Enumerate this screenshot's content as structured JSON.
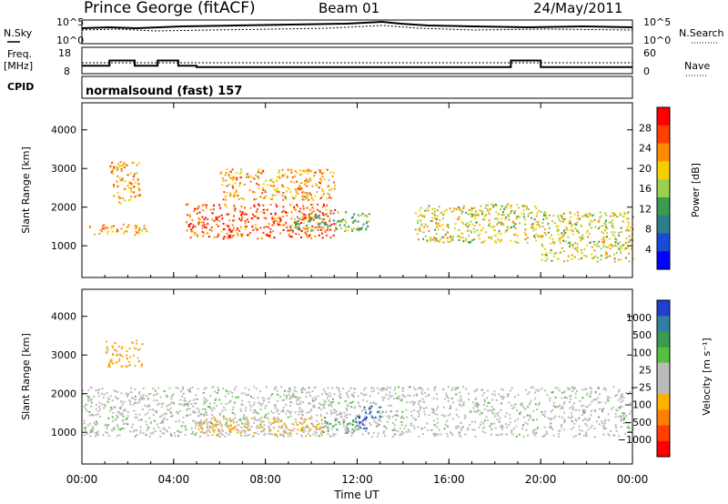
{
  "header": {
    "station": "Prince George (fitACF)",
    "beam": "Beam 01",
    "date": "24/May/2011"
  },
  "noise_panel": {
    "left_label": "N.Sky",
    "right_label": "N.Search",
    "left_ticks": [
      "10^5",
      "10^0"
    ],
    "right_ticks": [
      "10^5",
      "10^0"
    ]
  },
  "freq_panel": {
    "left_label": "Freq.",
    "left_unit": "[MHz]",
    "right_label": "Nave",
    "left_ticks": [
      "18",
      "8"
    ],
    "right_ticks": [
      "60",
      "0"
    ]
  },
  "cpid_panel": {
    "label": "CPID",
    "mode": "normalsound (fast) 157"
  },
  "power_panel": {
    "ylabel": "Slant Range [km]",
    "yticks": [
      "4000",
      "3000",
      "2000",
      "1000"
    ],
    "colorbar_label": "Power [dB]",
    "colorbar_ticks": [
      "28",
      "24",
      "20",
      "16",
      "12",
      "8",
      "4"
    ],
    "colors": [
      "#0000ff",
      "#1a4bd6",
      "#2e7d8c",
      "#3a9a50",
      "#9ad14a",
      "#f5d000",
      "#ff8c00",
      "#ff4000",
      "#ff0000"
    ]
  },
  "velocity_panel": {
    "ylabel": "Slant Range [km]",
    "yticks": [
      "4000",
      "3000",
      "2000",
      "1000"
    ],
    "colorbar_label": "Velocity [m s⁻¹]",
    "colorbar_ticks": [
      "1000",
      "500",
      "100",
      "25",
      "−25",
      "−100",
      "−500",
      "−1000"
    ],
    "colors": [
      "#1f3fd0",
      "#2f7fa0",
      "#3a9a50",
      "#55c040",
      "#bbbbbb",
      "#bbbbbb",
      "#ffb000",
      "#ff8000",
      "#ff4000",
      "#ff0000"
    ]
  },
  "xaxis": {
    "label": "Time UT",
    "ticks": [
      "00:00",
      "04:00",
      "08:00",
      "12:00",
      "16:00",
      "20:00",
      "00:00"
    ]
  },
  "chart_data": {
    "type": "heatmap",
    "title": "Prince George (fitACF) Beam 01 24/May/2011",
    "xlabel": "Time UT",
    "ylabel": "Slant Range [km]",
    "xlim_hours": [
      0,
      24
    ],
    "ylim_km": [
      180,
      4700
    ],
    "frequency_mhz": [
      {
        "start": 0.0,
        "end": 1.2,
        "value": 11
      },
      {
        "start": 1.2,
        "end": 2.3,
        "value": 13
      },
      {
        "start": 2.3,
        "end": 3.3,
        "value": 11
      },
      {
        "start": 3.3,
        "end": 4.2,
        "value": 13
      },
      {
        "start": 4.2,
        "end": 5.0,
        "value": 11
      },
      {
        "start": 5.0,
        "end": 18.7,
        "value": 10.5
      },
      {
        "start": 18.7,
        "end": 20.0,
        "value": 13
      },
      {
        "start": 20.0,
        "end": 24.0,
        "value": 10.5
      }
    ],
    "nave": 30,
    "power_bands": [
      {
        "t_start": 0.3,
        "t_end": 2.8,
        "range_start": 1300,
        "range_end": 1600,
        "power_db": 20
      },
      {
        "t_start": 1.2,
        "t_end": 2.5,
        "range_start": 2100,
        "range_end": 3200,
        "power_db": 20
      },
      {
        "t_start": 4.5,
        "t_end": 11.0,
        "range_start": 1200,
        "range_end": 2100,
        "power_db": 24
      },
      {
        "t_start": 6.0,
        "t_end": 11.0,
        "range_start": 2200,
        "range_end": 3000,
        "power_db": 20
      },
      {
        "t_start": 9.0,
        "t_end": 12.5,
        "range_start": 1400,
        "range_end": 1900,
        "power_db": 12
      },
      {
        "t_start": 14.5,
        "t_end": 20.0,
        "range_start": 1100,
        "range_end": 2100,
        "power_db": 16
      },
      {
        "t_start": 20.0,
        "t_end": 24.0,
        "range_start": 600,
        "range_end": 1900,
        "power_db": 16
      }
    ],
    "velocity_features": [
      {
        "t_start": 1.0,
        "t_end": 2.6,
        "range_start": 2700,
        "range_end": 3400,
        "velocity_ms": -100
      },
      {
        "t_start": 5.0,
        "t_end": 10.5,
        "range_start": 900,
        "range_end": 1400,
        "velocity_ms": -100
      },
      {
        "t_start": 10.5,
        "t_end": 12.0,
        "range_start": 1000,
        "range_end": 1400,
        "velocity_ms": 100
      },
      {
        "t_start": 12.0,
        "t_end": 13.0,
        "range_start": 1100,
        "range_end": 1700,
        "velocity_ms": 1000
      },
      {
        "t_start": 0.0,
        "t_end": 24.0,
        "range_start": 900,
        "range_end": 2200,
        "velocity_ms": 0
      }
    ]
  }
}
